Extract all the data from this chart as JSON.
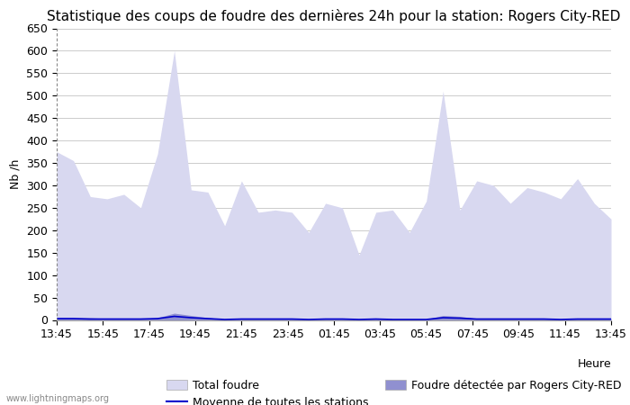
{
  "title": "Statistique des coups de foudre des dernières 24h pour la station: Rogers City-RED",
  "ylabel": "Nb /h",
  "xlabel_right": "Heure",
  "x_ticks": [
    "13:45",
    "15:45",
    "17:45",
    "19:45",
    "21:45",
    "23:45",
    "01:45",
    "03:45",
    "05:45",
    "07:45",
    "09:45",
    "11:45",
    "13:45"
  ],
  "ylim": [
    0,
    650
  ],
  "yticks": [
    0,
    50,
    100,
    150,
    200,
    250,
    300,
    350,
    400,
    450,
    500,
    550,
    600,
    650
  ],
  "total_foudre": [
    375,
    355,
    275,
    270,
    280,
    250,
    370,
    600,
    290,
    285,
    210,
    310,
    240,
    245,
    240,
    195,
    260,
    250,
    145,
    240,
    245,
    195,
    265,
    510,
    245,
    310,
    300,
    260,
    295,
    285,
    270,
    315,
    260,
    225
  ],
  "detected": [
    5,
    5,
    5,
    3,
    4,
    2,
    5,
    15,
    10,
    5,
    2,
    3,
    3,
    3,
    3,
    2,
    3,
    3,
    2,
    3,
    2,
    2,
    2,
    10,
    8,
    3,
    4,
    3,
    3,
    3,
    2,
    4,
    3,
    3
  ],
  "moyenne": [
    3,
    3,
    2,
    2,
    2,
    2,
    3,
    8,
    5,
    3,
    1,
    2,
    2,
    2,
    2,
    1,
    2,
    2,
    1,
    2,
    1,
    1,
    1,
    5,
    4,
    2,
    2,
    2,
    2,
    2,
    1,
    2,
    2,
    2
  ],
  "fill_color_total": "#d8d8f0",
  "fill_color_detected": "#9090d0",
  "line_color_moyenne": "#0000cc",
  "background_color": "#ffffff",
  "grid_color": "#cccccc",
  "title_fontsize": 11,
  "axis_fontsize": 9,
  "legend_fontsize": 9,
  "watermark": "www.lightningmaps.org",
  "n_points": 34
}
